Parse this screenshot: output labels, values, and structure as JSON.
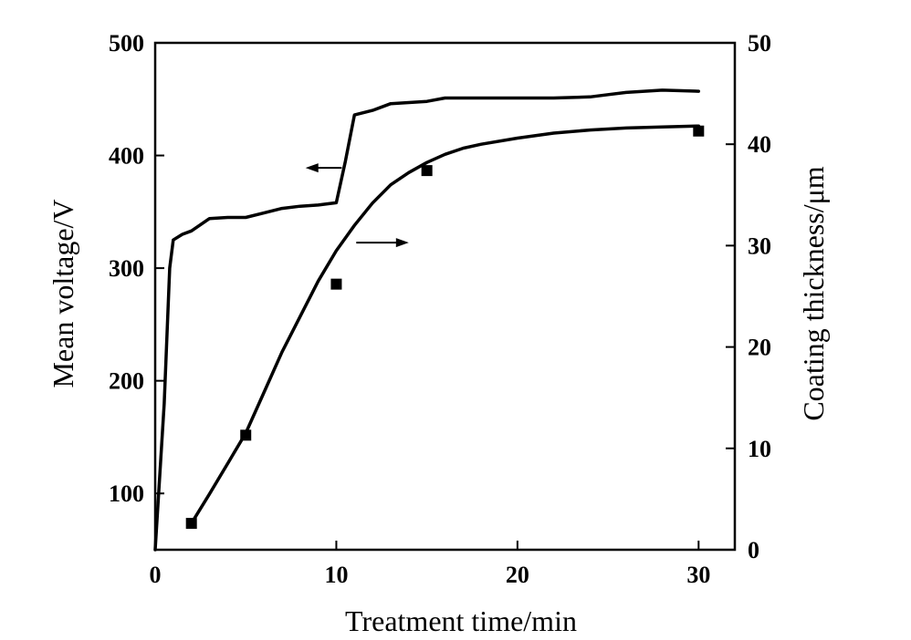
{
  "chart_data": {
    "type": "line",
    "xlabel": "Treatment time/min",
    "ylabel_left": "Mean voltage/V",
    "ylabel_right": "Coating thickness/μm",
    "xlim": [
      0,
      32
    ],
    "ylim_left": [
      50,
      500
    ],
    "ylim_right": [
      0,
      50
    ],
    "x_ticks": [
      0,
      10,
      20,
      30
    ],
    "y_left_ticks": [
      100,
      200,
      300,
      400,
      500
    ],
    "y_right_ticks": [
      0,
      10,
      20,
      30,
      40,
      50
    ],
    "grid": false,
    "series": [
      {
        "axis": "left",
        "style": "line",
        "x": [
          0,
          0.5,
          0.8,
          1,
          1.5,
          2,
          3,
          4,
          5,
          6,
          7,
          8,
          9,
          10,
          10.5,
          11,
          12,
          13,
          14,
          15,
          16,
          18,
          20,
          22,
          24,
          25,
          26,
          28,
          30
        ],
        "y": [
          50,
          180,
          300,
          325,
          330,
          333,
          344,
          345,
          345,
          349,
          353,
          355,
          356,
          358,
          395,
          436,
          440,
          446,
          447,
          448,
          451,
          451,
          451,
          451,
          452,
          454,
          456,
          458,
          457
        ]
      },
      {
        "axis": "right",
        "style": "line-markers",
        "markers": {
          "x": [
            2,
            5,
            10,
            15,
            30
          ],
          "y": [
            2.6,
            11.3,
            26.2,
            37.4,
            41.3
          ]
        },
        "x": [
          2,
          3,
          4,
          5,
          6,
          7,
          8,
          9,
          10,
          11,
          12,
          13,
          14,
          15,
          16,
          17,
          18,
          20,
          22,
          24,
          26,
          28,
          30
        ],
        "y": [
          2.6,
          5.5,
          8.5,
          11.5,
          15.5,
          19.5,
          23.0,
          26.5,
          29.5,
          32.0,
          34.2,
          36.0,
          37.2,
          38.2,
          39.0,
          39.6,
          40.0,
          40.6,
          41.1,
          41.4,
          41.6,
          41.7,
          41.8
        ]
      }
    ]
  }
}
